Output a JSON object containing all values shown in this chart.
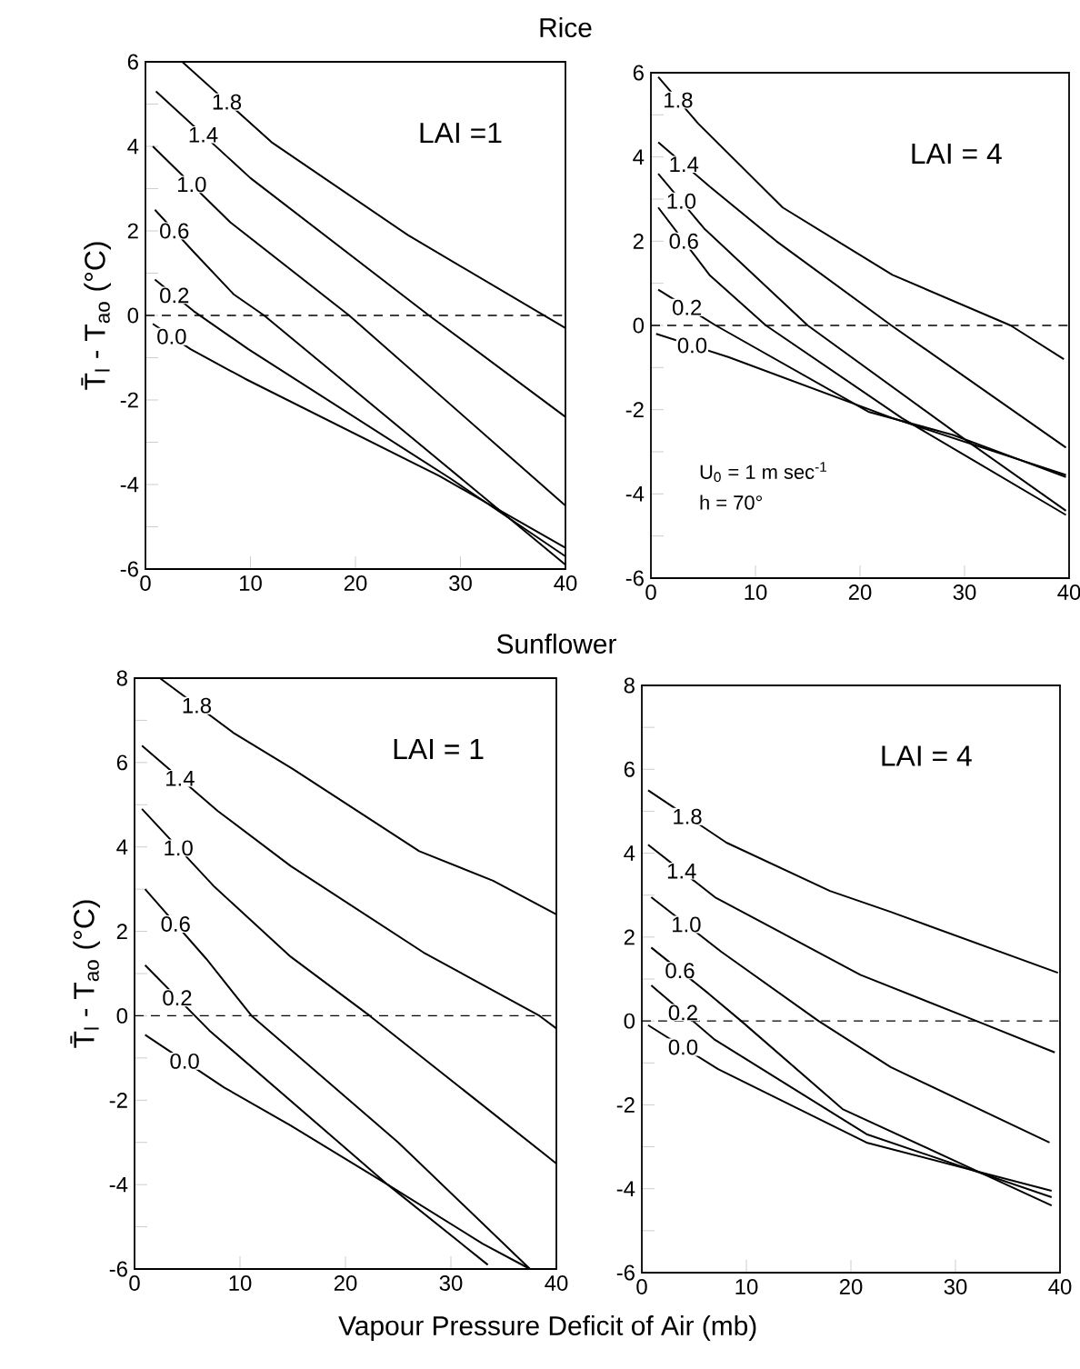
{
  "chart_data": [
    {
      "type": "line",
      "title": "Rice",
      "ylabel": "T̄$_{l}$ - T$_{ao}$   (°C)",
      "annotations": [
        "LAI =1"
      ],
      "xlim": [
        0,
        40
      ],
      "ylim": [
        -6,
        6
      ],
      "xticks": [
        0,
        10,
        20,
        30,
        40
      ],
      "yticks": [
        -6,
        {
          "value": -5,
          "label": null
        },
        -4,
        {
          "value": -3,
          "label": null
        },
        -2,
        {
          "value": -1,
          "label": null
        },
        0,
        {
          "value": 1,
          "label": null
        },
        2,
        {
          "value": 3,
          "label": null
        },
        4,
        {
          "value": 5,
          "label": null
        },
        6
      ],
      "grid": false,
      "ref_lines": [
        {
          "axis": "y",
          "value": 0,
          "line_style": "dashed",
          "color": "#000000"
        }
      ],
      "series": [
        {
          "name": "1.8",
          "color": "#000000",
          "x": [
            3.5,
            12,
            25,
            40
          ],
          "values": [
            6,
            4.1,
            1.9,
            -0.3
          ]
        },
        {
          "name": "1.4",
          "color": "#000000",
          "x": [
            1,
            10,
            27,
            40
          ],
          "values": [
            5.3,
            3.25,
            0,
            -2.4
          ]
        },
        {
          "name": "1.0",
          "color": "#000000",
          "x": [
            0.7,
            8.1,
            19.4,
            40
          ],
          "values": [
            4,
            2.2,
            0,
            -4.5
          ]
        },
        {
          "name": "0.6",
          "color": "#000000",
          "x": [
            0.9,
            4.6,
            8.4,
            11.3,
            40
          ],
          "values": [
            2.5,
            1.5,
            0.5,
            0,
            -5.9
          ]
        },
        {
          "name": "0.2",
          "color": "#000000",
          "x": [
            0.9,
            4.6,
            9.8,
            29,
            40
          ],
          "values": [
            0.85,
            0.1,
            -0.8,
            -3.85,
            -5.7
          ]
        },
        {
          "name": "0.0",
          "color": "#000000",
          "x": [
            0.7,
            4.3,
            9.5,
            28,
            40
          ],
          "values": [
            -0.2,
            -0.8,
            -1.5,
            -3.8,
            -5.5
          ]
        }
      ]
    },
    {
      "type": "line",
      "annotations": [
        "LAI = 4",
        "U$_{0}$ = 1 m sec$^{-1}$",
        "h  = 70°"
      ],
      "xlim": [
        0,
        40
      ],
      "ylim": [
        -6,
        6
      ],
      "xticks": [
        0,
        10,
        20,
        30,
        40
      ],
      "yticks": [
        -6,
        {
          "value": -5,
          "label": null
        },
        -4,
        {
          "value": -3,
          "label": null
        },
        -2,
        {
          "value": -1,
          "label": null
        },
        0,
        {
          "value": 1,
          "label": null
        },
        2,
        {
          "value": 3,
          "label": null
        },
        4,
        {
          "value": 5,
          "label": null
        },
        6
      ],
      "grid": false,
      "ref_lines": [
        {
          "axis": "y",
          "value": 0,
          "line_style": "dashed",
          "color": "#000000"
        }
      ],
      "series": [
        {
          "name": "1.8",
          "color": "#000000",
          "x": [
            0.7,
            4.5,
            12.6,
            23.1,
            34.4,
            39.5
          ],
          "values": [
            5.9,
            4.8,
            2.8,
            1.2,
            0,
            -0.8
          ]
        },
        {
          "name": "1.4",
          "color": "#000000",
          "x": [
            0.7,
            5.6,
            12,
            23,
            39.7
          ],
          "values": [
            4.35,
            3.3,
            2,
            0,
            -2.9
          ]
        },
        {
          "name": "1.0",
          "color": "#000000",
          "x": [
            0.7,
            5.1,
            15,
            30,
            39.7
          ],
          "values": [
            3.6,
            2.3,
            0,
            -2.7,
            -4.4
          ]
        },
        {
          "name": "0.6",
          "color": "#000000",
          "x": [
            0.7,
            5.6,
            11,
            24,
            39.7
          ],
          "values": [
            2.8,
            1.2,
            0,
            -2.2,
            -4.5
          ]
        },
        {
          "name": "0.2",
          "color": "#000000",
          "x": [
            0.7,
            6.2,
            20.8,
            28.9,
            39.7
          ],
          "values": [
            0.85,
            0,
            -2.05,
            -2.6,
            -3.6
          ]
        },
        {
          "name": "0.0",
          "color": "#000000",
          "x": [
            0.5,
            7.4,
            23.1,
            39.7
          ],
          "values": [
            -0.2,
            -0.75,
            -2.2,
            -3.55
          ]
        }
      ]
    },
    {
      "type": "line",
      "title": "Sunflower",
      "xlabel": "Vapour Pressure Deficit of Air   (mb)",
      "ylabel": "T̄$_{l}$ - T$_{ao}$   (°C)",
      "annotations": [
        "LAI = 1"
      ],
      "xlim": [
        0,
        40
      ],
      "ylim": [
        -6,
        8
      ],
      "xticks": [
        0,
        10,
        20,
        30,
        40
      ],
      "yticks": [
        -6,
        {
          "value": -5,
          "label": null
        },
        -4,
        {
          "value": -3,
          "label": null
        },
        -2,
        {
          "value": -1,
          "label": null
        },
        0,
        {
          "value": 1,
          "label": null
        },
        2,
        {
          "value": 3,
          "label": null
        },
        4,
        {
          "value": 5,
          "label": null
        },
        6,
        {
          "value": 7,
          "label": null
        },
        8
      ],
      "grid": false,
      "ref_lines": [
        {
          "axis": "y",
          "value": 0,
          "line_style": "dashed",
          "color": "#000000"
        }
      ],
      "series": [
        {
          "name": "1.8",
          "color": "#000000",
          "x": [
            2.4,
            9.4,
            15,
            27,
            34,
            40
          ],
          "values": [
            8,
            6.7,
            5.85,
            3.9,
            3.2,
            2.4
          ]
        },
        {
          "name": "1.4",
          "color": "#000000",
          "x": [
            0.7,
            7.9,
            14.8,
            27.4,
            38.4,
            40
          ],
          "values": [
            6.4,
            4.85,
            3.55,
            1.5,
            0,
            -0.3
          ]
        },
        {
          "name": "1.0",
          "color": "#000000",
          "x": [
            0.7,
            7.6,
            14.8,
            22.3,
            40
          ],
          "values": [
            4.9,
            3.05,
            1.4,
            0,
            -3.5
          ]
        },
        {
          "name": "0.6",
          "color": "#000000",
          "x": [
            1,
            6.8,
            11.1,
            25,
            37.5
          ],
          "values": [
            3,
            1.35,
            0,
            -3,
            -6
          ]
        },
        {
          "name": "0.2",
          "color": "#000000",
          "x": [
            1,
            7.1,
            24,
            33.5
          ],
          "values": [
            1.2,
            -0.35,
            -4,
            -5.9
          ]
        },
        {
          "name": "0.0",
          "color": "#000000",
          "x": [
            1,
            8.5,
            14.8,
            24,
            33,
            37.5
          ],
          "values": [
            -0.45,
            -1.7,
            -2.6,
            -4,
            -5.4,
            -6
          ]
        }
      ]
    },
    {
      "type": "line",
      "annotations": [
        "LAI = 4"
      ],
      "xlim": [
        0,
        40
      ],
      "ylim": [
        -6,
        8
      ],
      "xticks": [
        0,
        10,
        20,
        30,
        40
      ],
      "yticks": [
        -6,
        {
          "value": -5,
          "label": null
        },
        -4,
        {
          "value": -3,
          "label": null
        },
        -2,
        {
          "value": -1,
          "label": null
        },
        0,
        {
          "value": 1,
          "label": null
        },
        2,
        {
          "value": 3,
          "label": null
        },
        4,
        {
          "value": 5,
          "label": null
        },
        6,
        {
          "value": 7,
          "label": null
        },
        8
      ],
      "grid": false,
      "ref_lines": [
        {
          "axis": "y",
          "value": 0,
          "line_style": "dashed",
          "color": "#000000"
        }
      ],
      "series": [
        {
          "name": "1.8",
          "color": "#000000",
          "x": [
            0.6,
            8.1,
            18,
            23.8,
            39.8
          ],
          "values": [
            5.5,
            4.25,
            3.1,
            2.6,
            1.15
          ]
        },
        {
          "name": "1.4",
          "color": "#000000",
          "x": [
            0.6,
            7,
            20.9,
            32,
            39.5
          ],
          "values": [
            4.2,
            2.95,
            1.1,
            0,
            -0.75
          ]
        },
        {
          "name": "1.0",
          "color": "#000000",
          "x": [
            0.9,
            7.6,
            16.9,
            23.8,
            39
          ],
          "values": [
            2.95,
            1.65,
            0,
            -1.1,
            -2.9
          ]
        },
        {
          "name": "0.6",
          "color": "#000000",
          "x": [
            0.9,
            6.4,
            9.5,
            19.2,
            39.2
          ],
          "values": [
            1.75,
            0.65,
            0,
            -2.1,
            -4.4
          ]
        },
        {
          "name": "0.2",
          "color": "#000000",
          "x": [
            0.9,
            7,
            21.5,
            39.2
          ],
          "values": [
            0.85,
            -0.45,
            -2.7,
            -4.2
          ]
        },
        {
          "name": "0.0",
          "color": "#000000",
          "x": [
            0.6,
            7.3,
            21.5,
            39.2
          ],
          "values": [
            -0.1,
            -1.15,
            -2.9,
            -4.05
          ]
        }
      ]
    }
  ]
}
